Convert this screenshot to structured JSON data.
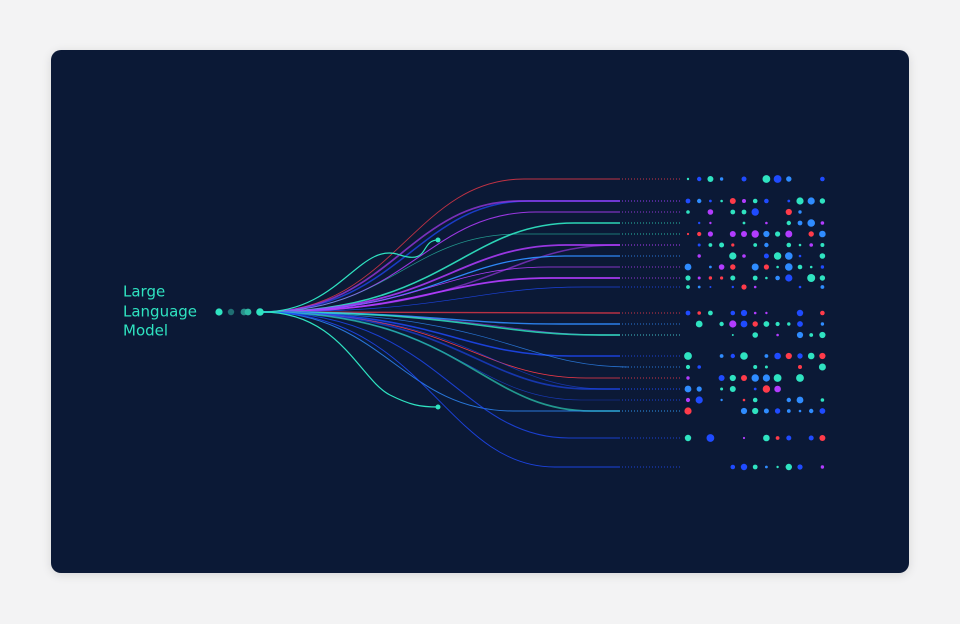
{
  "title_lines": [
    "Large",
    "Language",
    "Model"
  ]
}
